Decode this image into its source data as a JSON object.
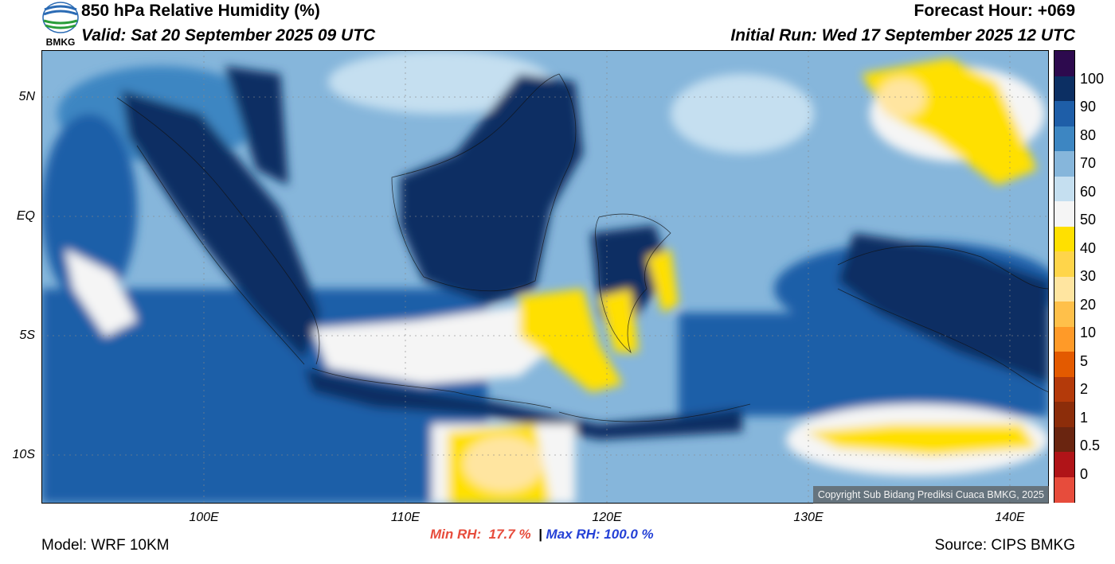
{
  "header": {
    "title": "850 hPa Relative Humidity (%)",
    "valid": "Valid: Sat 20 September 2025 09 UTC",
    "forecast_hour": "Forecast Hour: +069",
    "initial_run": "Initial Run: Wed 17 September 2025 12 UTC"
  },
  "logo": {
    "text": "BMKG",
    "icon": "bmkg-logo-icon"
  },
  "axes": {
    "lat_labels": [
      "5N",
      "EQ",
      "5S",
      "10S"
    ],
    "lon_labels": [
      "100E",
      "110E",
      "120E",
      "130E",
      "140E"
    ]
  },
  "colorbar": {
    "labels": [
      "100",
      "90",
      "80",
      "70",
      "60",
      "50",
      "40",
      "30",
      "20",
      "10",
      "5",
      "2",
      "1",
      "0.5",
      "0"
    ],
    "colors": [
      "#2d0a4e",
      "#0c2f63",
      "#1e5ea8",
      "#3d86c2",
      "#86b6db",
      "#c5dff0",
      "#f5f5f5",
      "#ffe000",
      "#ffd54a",
      "#ffe5a0",
      "#ffc04a",
      "#ff9a28",
      "#e35a00",
      "#b43a0a",
      "#8c2d0a",
      "#6a2510",
      "#b01418",
      "#e74c3c"
    ]
  },
  "stats": {
    "min_rh": "Min RH:  17.7 %",
    "separator": "|",
    "max_rh": "Max RH: 100.0 %"
  },
  "footer": {
    "model": "Model: WRF 10KM",
    "source": "Source: CIPS BMKG",
    "copyright": "Copyright Sub Bidang Prediksi Cuaca BMKG, 2025"
  },
  "colors": {
    "very_humid": "#0c2f63",
    "humid": "#1e5ea8",
    "moderate": "#3d86c2",
    "light": "#86b6db",
    "pale": "#c5dff0",
    "dry_white": "#f5f5f5",
    "dry_yellow": "#ffe000",
    "driest": "#ffe5a0",
    "min_label": "#e74c3c",
    "max_label": "#2541d6"
  }
}
